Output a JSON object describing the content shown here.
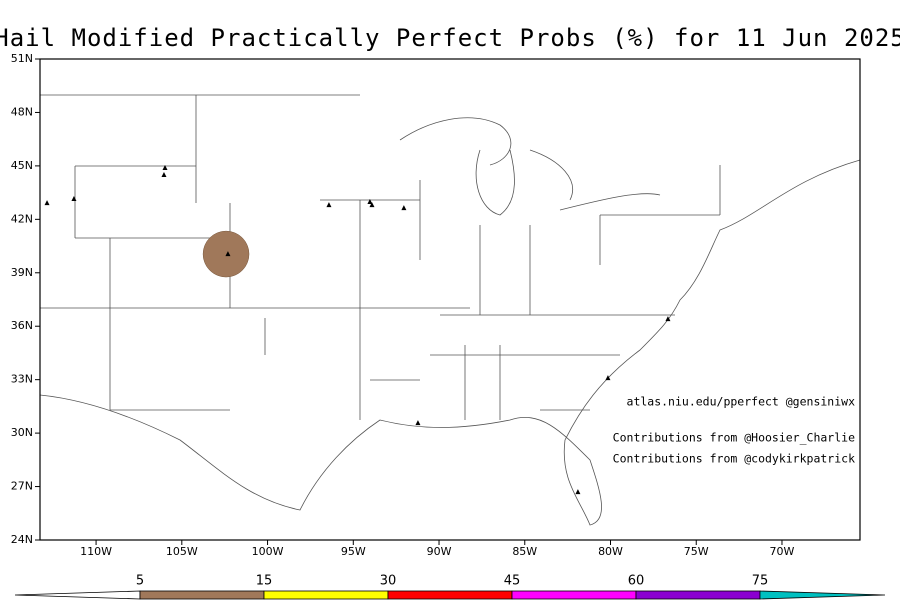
{
  "chart_data": {
    "type": "map",
    "title": "Hail Modified Practically Perfect Probs (%) for 11 Jun 2025",
    "xlim": [
      -113.27,
      -65.45
    ],
    "ylim": [
      24,
      51
    ],
    "xticks": [
      {
        "value": -110,
        "label": "110W"
      },
      {
        "value": -105,
        "label": "105W"
      },
      {
        "value": -100,
        "label": "100W"
      },
      {
        "value": -95,
        "label": "95W"
      },
      {
        "value": -90,
        "label": "90W"
      },
      {
        "value": -85,
        "label": "85W"
      },
      {
        "value": -80,
        "label": "80W"
      },
      {
        "value": -75,
        "label": "75W"
      },
      {
        "value": -70,
        "label": "70W"
      }
    ],
    "yticks": [
      {
        "value": 24,
        "label": "24N"
      },
      {
        "value": 27,
        "label": "27N"
      },
      {
        "value": 30,
        "label": "30N"
      },
      {
        "value": 33,
        "label": "33N"
      },
      {
        "value": 36,
        "label": "36N"
      },
      {
        "value": 39,
        "label": "39N"
      },
      {
        "value": 42,
        "label": "42N"
      },
      {
        "value": 45,
        "label": "45N"
      },
      {
        "value": 48,
        "label": "48N"
      },
      {
        "value": 51,
        "label": "51N"
      }
    ],
    "contours": [
      {
        "level": 5,
        "color": "#a0785a",
        "lon": -102.42,
        "lat": 40.05,
        "radius_deg": 1.34
      }
    ],
    "reports": {
      "lon": [
        -112.86,
        -111.29,
        -105.98,
        -106.04,
        -102.31,
        -96.42,
        -94.03,
        -93.91,
        -92.05,
        -76.65,
        -80.15,
        -91.23,
        -81.9
      ],
      "lat": [
        42.91,
        43.14,
        44.88,
        44.49,
        40.05,
        42.8,
        42.97,
        42.8,
        42.63,
        36.4,
        33.09,
        30.56,
        26.69
      ]
    },
    "annotations": [
      "atlas.niu.edu/pperfect @gensiniwx",
      "Contributions from @Hoosier_Charlie",
      "Contributions from @codykirkpatrick"
    ],
    "colorbar": {
      "levels": [
        5,
        15,
        30,
        45,
        60,
        75
      ],
      "colors": [
        "#ffffff",
        "#a0785a",
        "#ffff00",
        "#ff0000",
        "#ff00ff",
        "#8b00d0",
        "#00c0c0"
      ]
    }
  }
}
